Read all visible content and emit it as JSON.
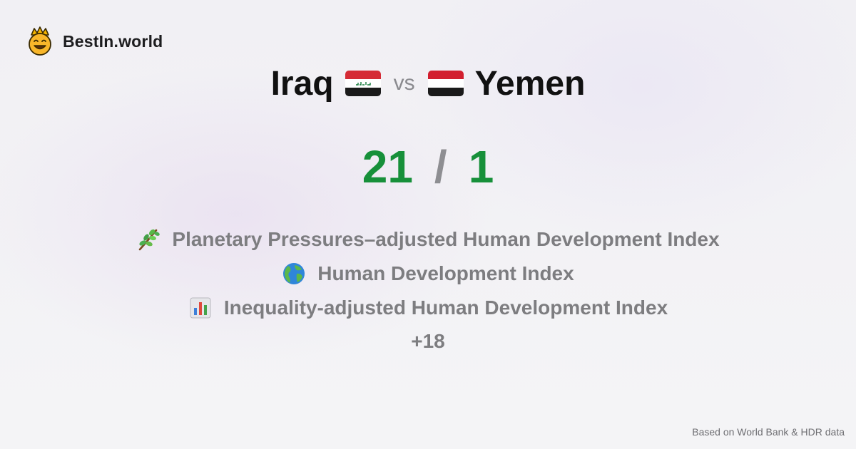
{
  "brand": {
    "name": "BestIn.world",
    "logo_icon": "crowned-smiley-icon"
  },
  "comparison": {
    "country_a": {
      "name": "Iraq",
      "flag_icon": "iraq-flag-icon"
    },
    "vs_label": "vs",
    "country_b": {
      "name": "Yemen",
      "flag_icon": "yemen-flag-icon"
    }
  },
  "score": {
    "a": "21",
    "separator": "/",
    "b": "1",
    "color": "#17903a"
  },
  "metrics": [
    {
      "icon": "herb-icon",
      "label": "Planetary Pressures–adjusted Human Development Index"
    },
    {
      "icon": "globe-icon",
      "label": "Human Development Index"
    },
    {
      "icon": "bar-chart-icon",
      "label": "Inequality-adjusted Human Development Index"
    }
  ],
  "more_count": "+18",
  "footer": {
    "source": "Based on World Bank & HDR data"
  }
}
